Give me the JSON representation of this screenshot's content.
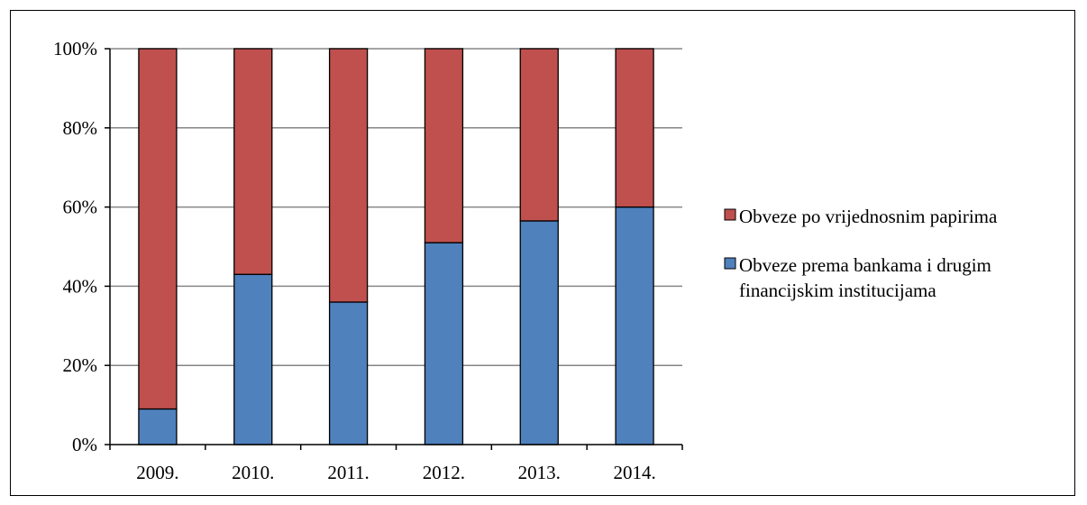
{
  "chart_data": {
    "type": "bar",
    "stacked": true,
    "percent_stacked": true,
    "categories": [
      "2009.",
      "2010.",
      "2011.",
      "2012.",
      "2013.",
      "2014."
    ],
    "series": [
      {
        "name": "Obveze prema bankama i drugim financijskim institucijama",
        "legend_lines": [
          "Obveze prema bankama i drugim",
          "financijskim institucijama"
        ],
        "color": "#4F81BD",
        "values": [
          9,
          43,
          36,
          51,
          56.5,
          60
        ]
      },
      {
        "name": "Obveze po vrijednosnim papirima",
        "legend_lines": [
          "Obveze po vrijednosnim papirima"
        ],
        "color": "#C0504D",
        "values": [
          91,
          57,
          64,
          49,
          43.5,
          40
        ]
      }
    ],
    "ylim": [
      0,
      100
    ],
    "yticks": [
      "0%",
      "20%",
      "40%",
      "60%",
      "80%",
      "100%"
    ],
    "grid": true,
    "legend_position": "right",
    "title": "",
    "xlabel": "",
    "ylabel": ""
  }
}
